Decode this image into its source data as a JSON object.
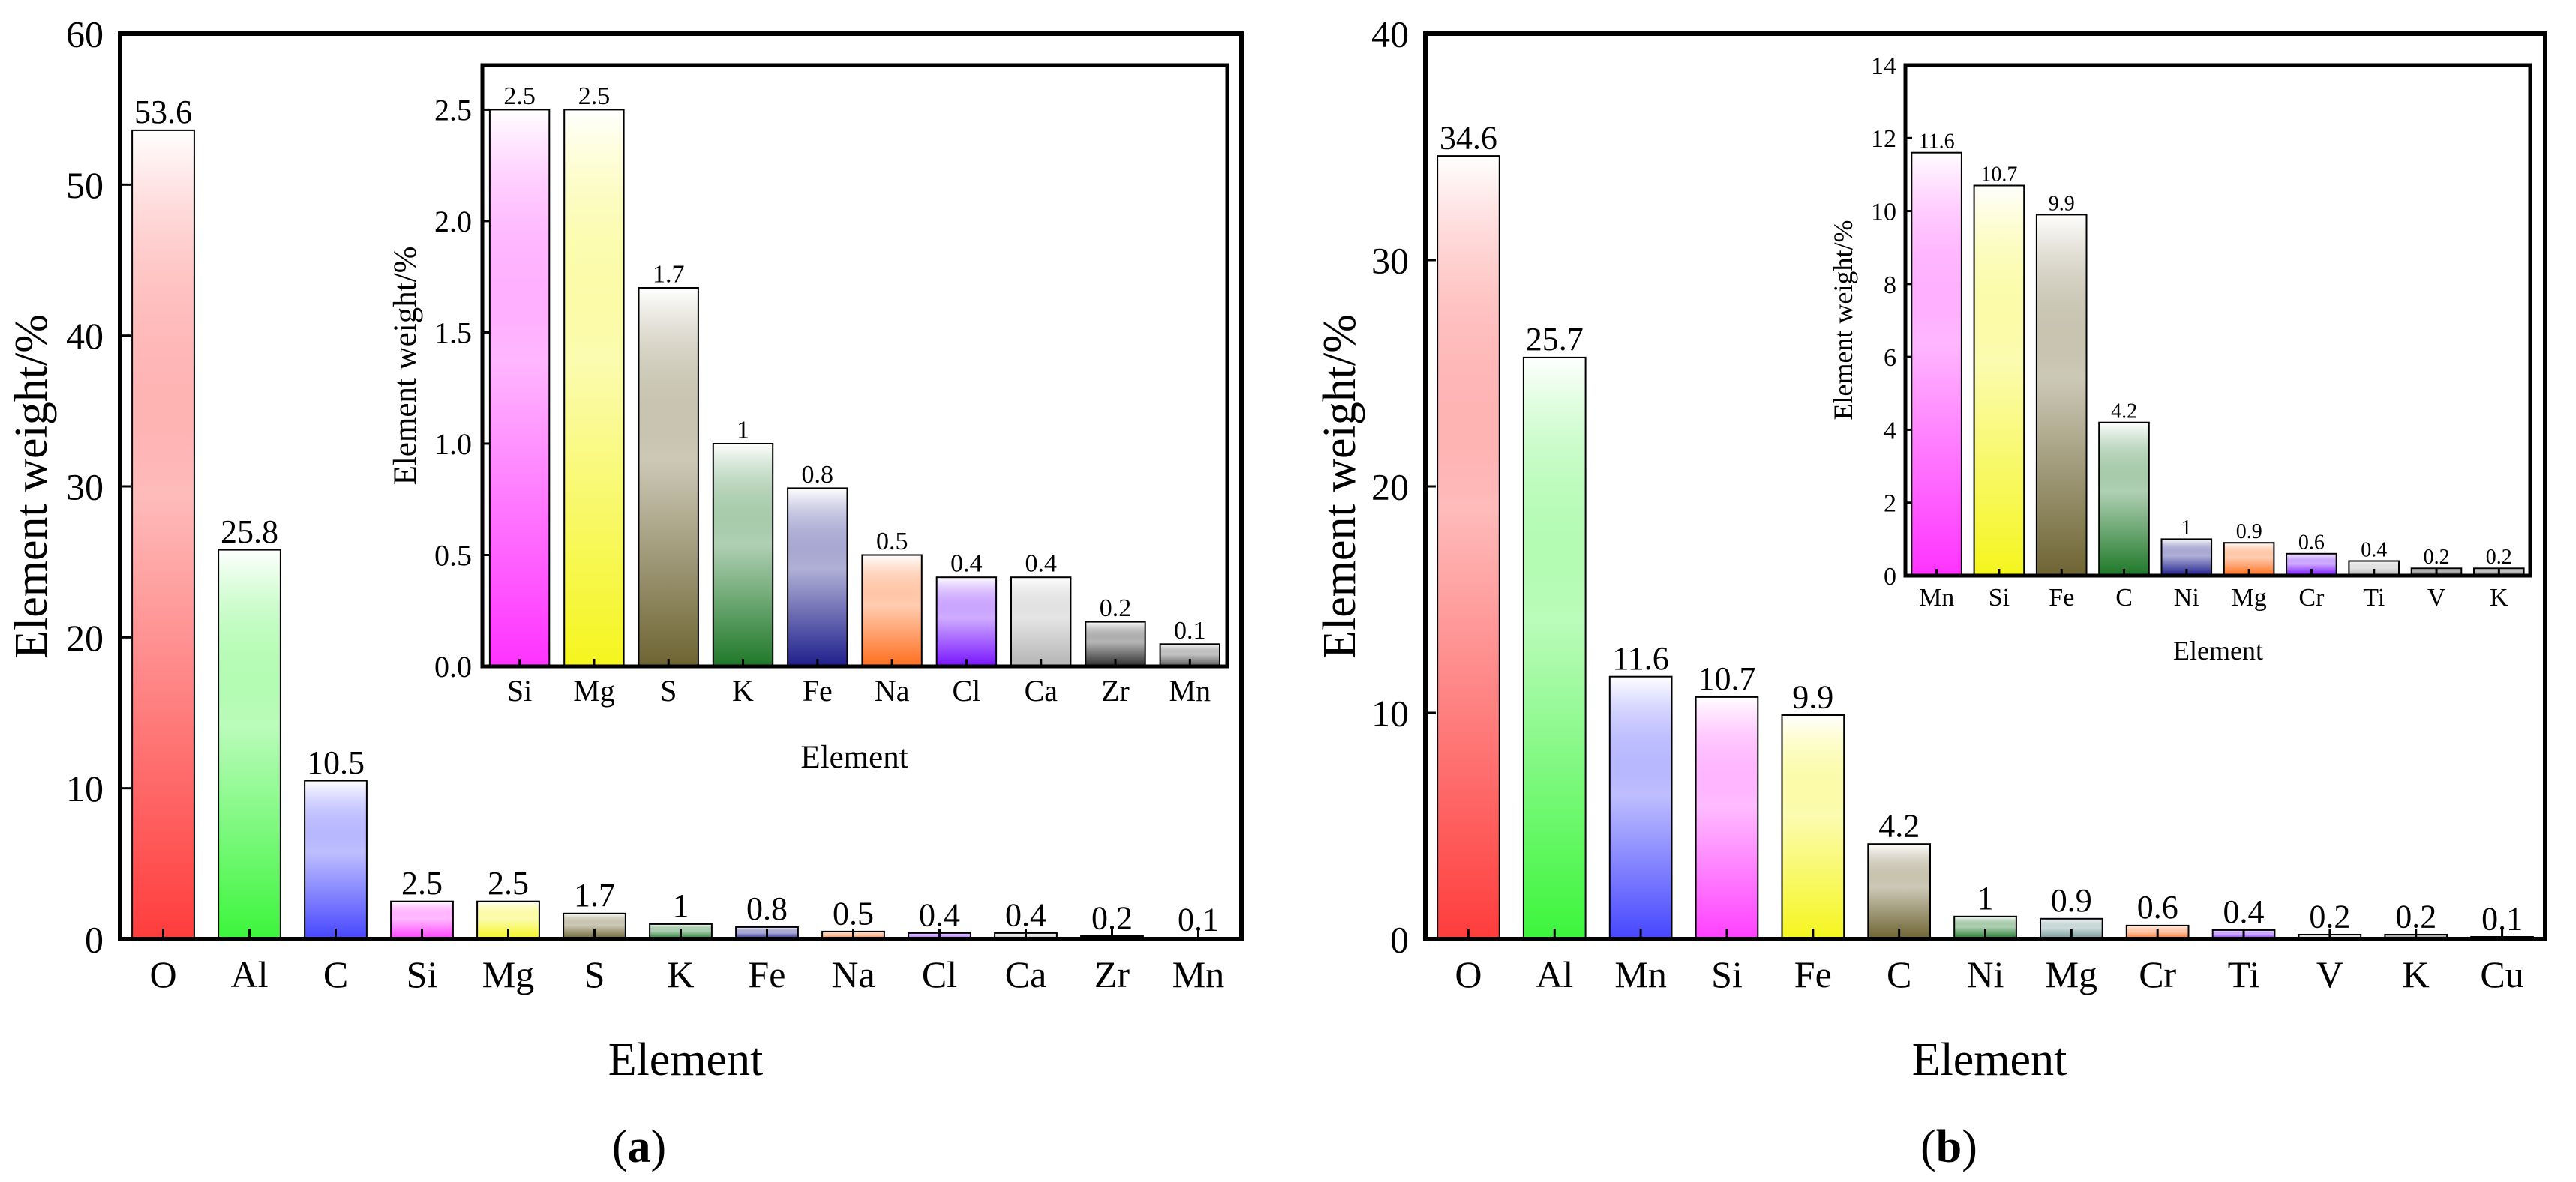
{
  "chart_data": [
    {
      "id": "a",
      "type": "bar",
      "panel_label": "a",
      "xlabel": "Element",
      "ylabel": "Element weight/%",
      "ylim": [
        0,
        60
      ],
      "yticks": [
        0,
        10,
        20,
        30,
        40,
        50,
        60
      ],
      "categories": [
        "O",
        "Al",
        "C",
        "Si",
        "Mg",
        "S",
        "K",
        "Fe",
        "Na",
        "Cl",
        "Ca",
        "Zr",
        "Mn"
      ],
      "values": [
        53.6,
        25.8,
        10.5,
        2.5,
        2.5,
        1.7,
        1,
        0.8,
        0.5,
        0.4,
        0.4,
        0.2,
        0.1
      ],
      "value_labels": [
        "53.6",
        "25.8",
        "10.5",
        "2.5",
        "2.5",
        "1.7",
        "1",
        "0.8",
        "0.5",
        "0.4",
        "0.4",
        "0.2",
        "0.1"
      ],
      "bar_colors": [
        "#ff3c3c",
        "#3cf53c",
        "#4646ff",
        "#ff40ff",
        "#f5f51e",
        "#6e6432",
        "#1e7828",
        "#1e1e8c",
        "#ff6e1e",
        "#7814ff",
        "#b4b4b4",
        "#2d2d2d",
        "#5a5a5a"
      ],
      "inset": {
        "type": "bar",
        "xlabel": "Element",
        "ylabel": "Element weight/%",
        "ylim": [
          0,
          2.7
        ],
        "yticks": [
          "0.0",
          "0.5",
          "1.0",
          "1.5",
          "2.0",
          "2.5"
        ],
        "categories": [
          "Si",
          "Mg",
          "S",
          "K",
          "Fe",
          "Na",
          "Cl",
          "Ca",
          "Zr",
          "Mn"
        ],
        "values": [
          2.5,
          2.5,
          1.7,
          1,
          0.8,
          0.5,
          0.4,
          0.4,
          0.2,
          0.1
        ],
        "value_labels": [
          "2.5",
          "2.5",
          "1.7",
          "1",
          "0.8",
          "0.5",
          "0.4",
          "0.4",
          "0.2",
          "0.1"
        ],
        "bar_colors": [
          "#ff32ff",
          "#f5f51e",
          "#6e6432",
          "#1e7828",
          "#1e1e8c",
          "#ff6e1e",
          "#7814ff",
          "#b4b4b4",
          "#2d2d2d",
          "#5a5a5a"
        ]
      }
    },
    {
      "id": "b",
      "type": "bar",
      "panel_label": "b",
      "xlabel": "Element",
      "ylabel": "Element weight/%",
      "ylim": [
        0,
        40
      ],
      "yticks": [
        0,
        10,
        20,
        30,
        40
      ],
      "categories": [
        "O",
        "Al",
        "Mn",
        "Si",
        "Fe",
        "C",
        "Ni",
        "Mg",
        "Cr",
        "Ti",
        "V",
        "K",
        "Cu"
      ],
      "values": [
        34.6,
        25.7,
        11.6,
        10.7,
        9.9,
        4.2,
        1,
        0.9,
        0.6,
        0.4,
        0.2,
        0.2,
        0.1
      ],
      "value_labels": [
        "34.6",
        "25.7",
        "11.6",
        "10.7",
        "9.9",
        "4.2",
        "1",
        "0.9",
        "0.6",
        "0.4",
        "0.2",
        "0.2",
        "0.1"
      ],
      "bar_colors": [
        "#ff3c3c",
        "#3cf53c",
        "#4646ff",
        "#ff40ff",
        "#f5f51e",
        "#6e6432",
        "#1e7828",
        "#6e9696",
        "#ff6e1e",
        "#7814ff",
        "#b4b4b4",
        "#2d2d2d",
        "#5a5a5a"
      ],
      "inset": {
        "type": "bar",
        "xlabel": "Element",
        "ylabel": "Element weight/%",
        "ylim": [
          0,
          14
        ],
        "yticks": [
          "0",
          "2",
          "4",
          "6",
          "8",
          "10",
          "12",
          "14"
        ],
        "categories": [
          "Mn",
          "Si",
          "Fe",
          "C",
          "Ni",
          "Mg",
          "Cr",
          "Ti",
          "V",
          "K"
        ],
        "values": [
          11.6,
          10.7,
          9.9,
          4.2,
          1,
          0.9,
          0.6,
          0.4,
          0.2,
          0.2
        ],
        "value_labels": [
          "11.6",
          "10.7",
          "9.9",
          "4.2",
          "1",
          "0.9",
          "0.6",
          "0.4",
          "0.2",
          "0.2"
        ],
        "bar_colors": [
          "#ff32ff",
          "#f5f51e",
          "#6e6432",
          "#1e7828",
          "#1e1e8c",
          "#ff6e1e",
          "#7814ff",
          "#b4b4b4",
          "#2d2d2d",
          "#5a5a5a"
        ]
      }
    }
  ]
}
